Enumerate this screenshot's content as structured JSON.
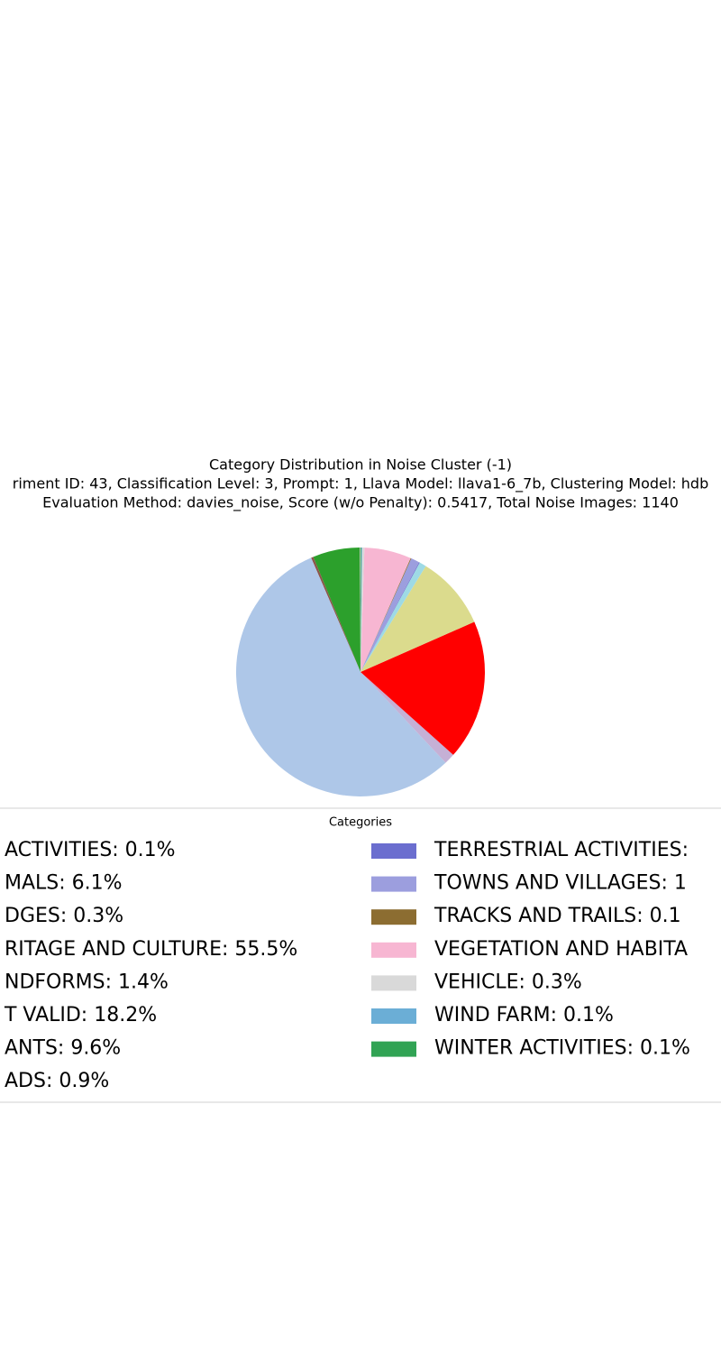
{
  "chart_data": {
    "type": "pie",
    "title": "Category Distribution in Noise Cluster (-1)",
    "subtitle": [
      "riment ID: 43, Classification Level: 3, Prompt: 1, Llava Model: llava1-6_7b, Clustering Model: hdb",
      "Evaluation Method: davies_noise, Score (w/o Penalty): 0.5417, Total Noise Images: 1140"
    ],
    "legend_title": "Categories",
    "categories": [
      "ACTIVITIES: 0.1%",
      "MALS: 6.1%",
      "DGES: 0.3%",
      "RITAGE AND CULTURE: 55.5%",
      "NDFORMS: 1.4%",
      "T VALID: 18.2%",
      "ANTS: 9.6%",
      "ADS: 0.9%",
      "TERRESTRIAL ACTIVITIES:",
      "TOWNS AND VILLAGES: 1",
      "TRACKS AND TRAILS: 0.1",
      "VEGETATION AND HABITA",
      "VEHICLE: 0.3%",
      "WIND FARM: 0.1%",
      "WINTER ACTIVITIES: 0.1%"
    ],
    "values": [
      0.1,
      6.1,
      0.3,
      55.5,
      1.4,
      18.2,
      9.6,
      0.9,
      0.1,
      1.1,
      0.1,
      6.1,
      0.3,
      0.1,
      0.1
    ],
    "colors": [
      "#c7c7c7",
      "#2ca02c",
      "#8c564b",
      "#aec7e8",
      "#c5b0d5",
      "#ff0000",
      "#dbdb8d",
      "#9edae5",
      "#6b6ecf",
      "#9c9ede",
      "#8c6d31",
      "#f7b6d2",
      "#d9d9d9",
      "#6baed6",
      "#31a354"
    ],
    "start_angle": 90,
    "legend_columns": 2
  }
}
